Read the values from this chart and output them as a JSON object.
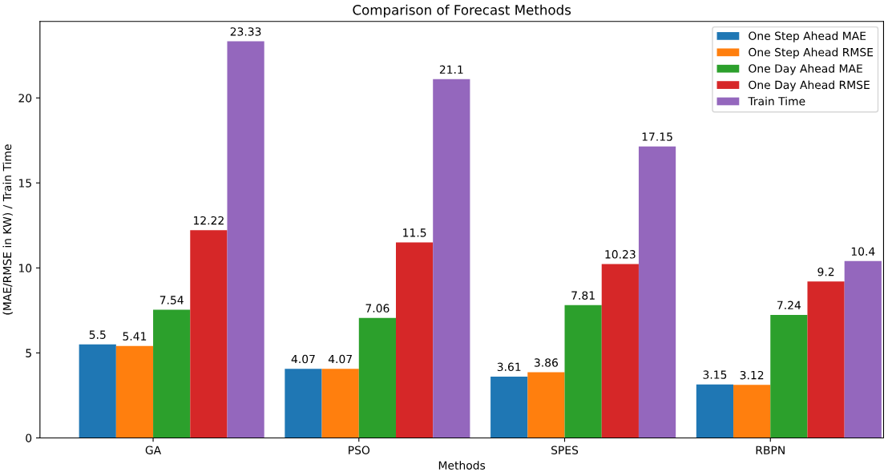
{
  "chart_data": {
    "type": "bar",
    "title": "Comparison of Forecast Methods",
    "xlabel": "Methods",
    "ylabel": "(MAE/RMSE in KW) / Train Time",
    "categories": [
      "GA",
      "PSO",
      "SPES",
      "RBPN"
    ],
    "series": [
      {
        "name": "One Step Ahead MAE",
        "color": "#1f77b4",
        "values": [
          5.5,
          4.07,
          3.61,
          3.15
        ]
      },
      {
        "name": "One Step Ahead RMSE",
        "color": "#ff7f0e",
        "values": [
          5.41,
          4.07,
          3.86,
          3.12
        ]
      },
      {
        "name": "One Day Ahead MAE",
        "color": "#2ca02c",
        "values": [
          7.54,
          7.06,
          7.81,
          7.24
        ]
      },
      {
        "name": "One Day Ahead RMSE",
        "color": "#d62728",
        "values": [
          12.22,
          11.5,
          10.23,
          9.2
        ]
      },
      {
        "name": "Train Time",
        "color": "#9467bd",
        "values": [
          23.33,
          21.1,
          17.15,
          10.4
        ]
      }
    ],
    "ylim": [
      0,
      24.5
    ],
    "yticks": [
      0,
      5,
      10,
      15,
      20
    ],
    "data_labels": true,
    "legend": "top right",
    "grid": false
  }
}
